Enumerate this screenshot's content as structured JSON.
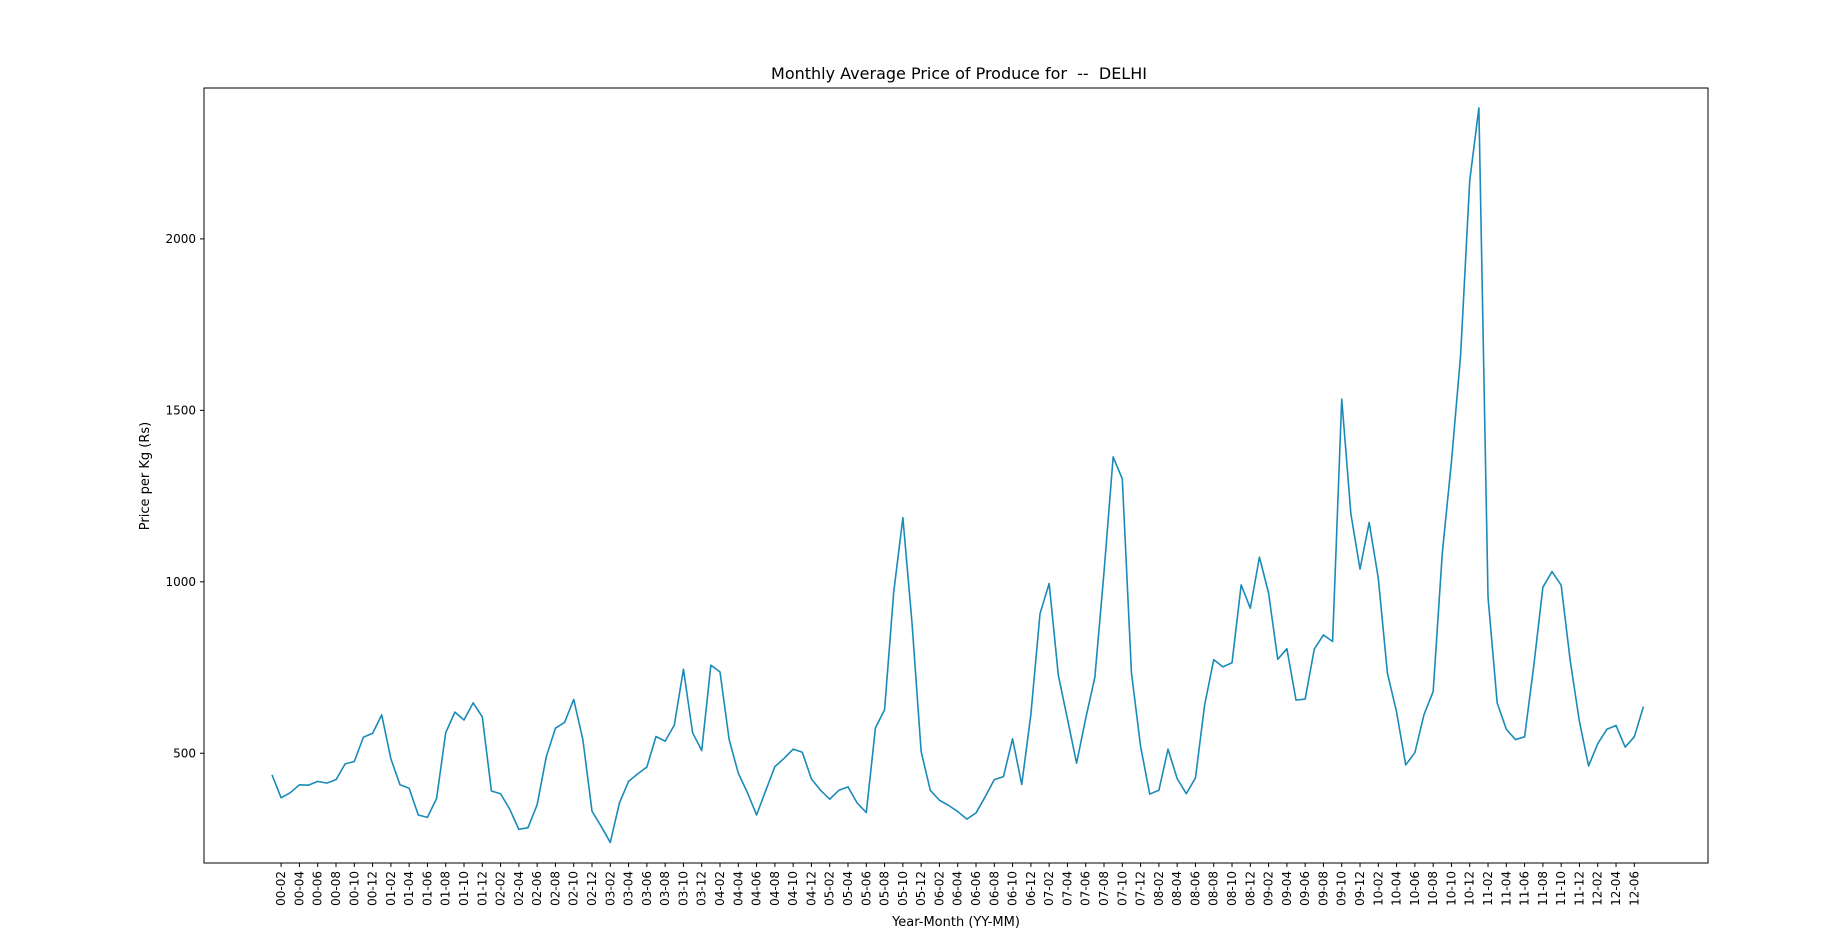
{
  "chart_data": {
    "type": "line",
    "title": "Monthly Average Price of Produce for  --  DELHI",
    "xlabel": "Year-Month (YY-MM)",
    "ylabel": "Price per Kg (Rs)",
    "ylim": [
      180,
      2440
    ],
    "yticks": [
      500,
      1000,
      1500,
      2000
    ],
    "grid": false,
    "colors": {
      "line": "#1a8bb9",
      "frame": "#000000"
    },
    "series": [
      {
        "x": [
          "00-01",
          "00-02",
          "00-03",
          "00-04",
          "00-05",
          "00-06",
          "00-07",
          "00-08",
          "00-09",
          "00-10",
          "00-11",
          "00-12",
          "01-01",
          "01-02",
          "01-03",
          "01-04",
          "01-05",
          "01-06",
          "01-07",
          "01-08",
          "01-09",
          "01-10",
          "01-11",
          "01-12",
          "02-01",
          "02-02",
          "02-03",
          "02-04",
          "02-05",
          "02-06",
          "02-07",
          "02-08",
          "02-09",
          "02-10",
          "02-11",
          "02-12",
          "03-01",
          "03-02",
          "03-03",
          "03-04",
          "03-05",
          "03-06",
          "03-07",
          "03-08",
          "03-09",
          "03-10",
          "03-11",
          "03-12",
          "04-01",
          "04-02",
          "04-03",
          "04-04",
          "04-05",
          "04-06",
          "04-07",
          "04-08",
          "04-09",
          "04-10",
          "04-11",
          "04-12",
          "05-01",
          "05-02",
          "05-03",
          "05-04",
          "05-05",
          "05-06",
          "05-07",
          "05-08",
          "05-09",
          "05-10",
          "05-11",
          "05-12",
          "06-01",
          "06-02",
          "06-03",
          "06-04",
          "06-05",
          "06-06",
          "06-07",
          "06-08",
          "06-09",
          "06-10",
          "06-11",
          "06-12",
          "07-01",
          "07-02",
          "07-03",
          "07-04",
          "07-05",
          "07-06",
          "07-07",
          "07-08",
          "07-09",
          "07-10",
          "07-11",
          "07-12",
          "08-01",
          "08-02",
          "08-03",
          "08-04",
          "08-05",
          "08-06",
          "08-07",
          "08-08",
          "08-09",
          "08-10",
          "08-11",
          "08-12",
          "09-01",
          "09-02",
          "09-03",
          "09-04",
          "09-05",
          "09-06",
          "09-07",
          "09-08",
          "09-09",
          "09-10",
          "09-11",
          "09-12",
          "10-01",
          "10-02",
          "10-03",
          "10-04",
          "10-05",
          "10-06",
          "10-07",
          "10-08",
          "10-09",
          "10-10",
          "10-11",
          "10-12",
          "11-01",
          "11-02",
          "11-03",
          "11-04",
          "11-05",
          "11-06",
          "11-07",
          "11-08",
          "11-09",
          "11-10",
          "11-11",
          "11-12",
          "12-01",
          "12-02",
          "12-03",
          "12-04",
          "12-05",
          "12-06",
          "12-07"
        ],
        "values": [
          437,
          370,
          385,
          408,
          407,
          418,
          413,
          423,
          469,
          476,
          547,
          558,
          612,
          484,
          408,
          398,
          320,
          313,
          368,
          560,
          620,
          597,
          647,
          606,
          390,
          382,
          337,
          278,
          283,
          350,
          490,
          573,
          590,
          657,
          540,
          331,
          287,
          240,
          355,
          418,
          440,
          460,
          549,
          535,
          582,
          745,
          560,
          508,
          757,
          737,
          540,
          442,
          385,
          320,
          391,
          461,
          485,
          512,
          503,
          425,
          392,
          366,
          392,
          402,
          355,
          327,
          574,
          627,
          970,
          1187,
          880,
          505,
          392,
          363,
          348,
          330,
          308,
          326,
          373,
          423,
          432,
          542,
          409,
          613,
          907,
          995,
          728,
          600,
          471,
          602,
          722,
          1028,
          1364,
          1300,
          735,
          520,
          381,
          392,
          512,
          426,
          382,
          428,
          640,
          773,
          752,
          764,
          991,
          923,
          1072,
          967,
          774,
          805,
          655,
          658,
          804,
          845,
          826,
          1533,
          1198,
          1037,
          1173,
          1010,
          733,
          620,
          466,
          502,
          613,
          680,
          1084,
          1350,
          1660,
          2170,
          2382,
          955,
          647,
          570,
          540,
          548,
          754,
          984,
          1030,
          990,
          768,
          592,
          463,
          528,
          570,
          581,
          518,
          548,
          636
        ]
      }
    ]
  }
}
